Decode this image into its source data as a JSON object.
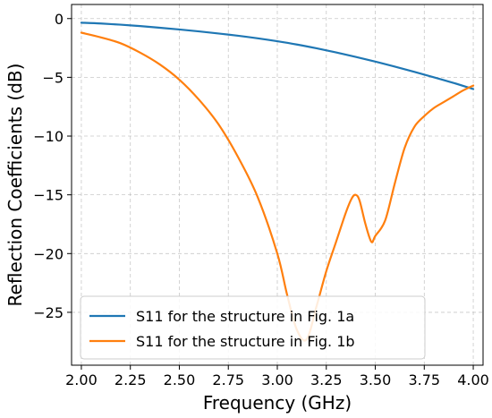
{
  "chart_data": {
    "type": "line",
    "xlabel": "Frequency (GHz)",
    "ylabel": "Reflection Coefficients (dB)",
    "xlim": [
      1.95,
      4.05
    ],
    "ylim": [
      -29.5,
      1.2
    ],
    "xticks": [
      2.0,
      2.25,
      2.5,
      2.75,
      3.0,
      3.25,
      3.5,
      3.75,
      4.0
    ],
    "xtick_labels": [
      "2.00",
      "2.25",
      "2.50",
      "2.75",
      "3.00",
      "3.25",
      "3.50",
      "3.75",
      "4.00"
    ],
    "yticks": [
      0,
      -5,
      -10,
      -15,
      -20,
      -25
    ],
    "ytick_labels": [
      "0",
      "−5",
      "−10",
      "−15",
      "−20",
      "−25"
    ],
    "grid": true,
    "legend_position": "bottom-left",
    "series": [
      {
        "name": "S11 for the structure in Fig. 1a",
        "color": "#1f77b4",
        "x": [
          2.0,
          2.1,
          2.2,
          2.3,
          2.4,
          2.5,
          2.6,
          2.7,
          2.8,
          2.9,
          3.0,
          3.1,
          3.2,
          3.3,
          3.4,
          3.5,
          3.6,
          3.7,
          3.8,
          3.9,
          4.0
        ],
        "y": [
          -0.35,
          -0.42,
          -0.52,
          -0.64,
          -0.78,
          -0.93,
          -1.09,
          -1.27,
          -1.46,
          -1.68,
          -1.93,
          -2.21,
          -2.53,
          -2.88,
          -3.26,
          -3.66,
          -4.09,
          -4.54,
          -5.0,
          -5.48,
          -6.0
        ]
      },
      {
        "name": "S11 for the structure in Fig. 1b",
        "color": "#ff7f0e",
        "x": [
          2.0,
          2.1,
          2.2,
          2.3,
          2.4,
          2.5,
          2.6,
          2.7,
          2.8,
          2.9,
          3.0,
          3.05,
          3.1,
          3.15,
          3.2,
          3.25,
          3.3,
          3.35,
          3.38,
          3.4,
          3.42,
          3.45,
          3.48,
          3.5,
          3.55,
          3.6,
          3.65,
          3.7,
          3.75,
          3.8,
          3.85,
          3.9,
          3.95,
          4.0
        ],
        "y": [
          -1.2,
          -1.6,
          -2.1,
          -2.9,
          -3.9,
          -5.2,
          -6.9,
          -9.0,
          -11.8,
          -15.2,
          -20.0,
          -23.5,
          -26.5,
          -27.3,
          -24.5,
          -21.5,
          -19.0,
          -16.5,
          -15.3,
          -15.0,
          -15.5,
          -17.5,
          -19.0,
          -18.5,
          -17.2,
          -14.0,
          -11.0,
          -9.2,
          -8.3,
          -7.6,
          -7.1,
          -6.6,
          -6.1,
          -5.7
        ]
      }
    ]
  }
}
